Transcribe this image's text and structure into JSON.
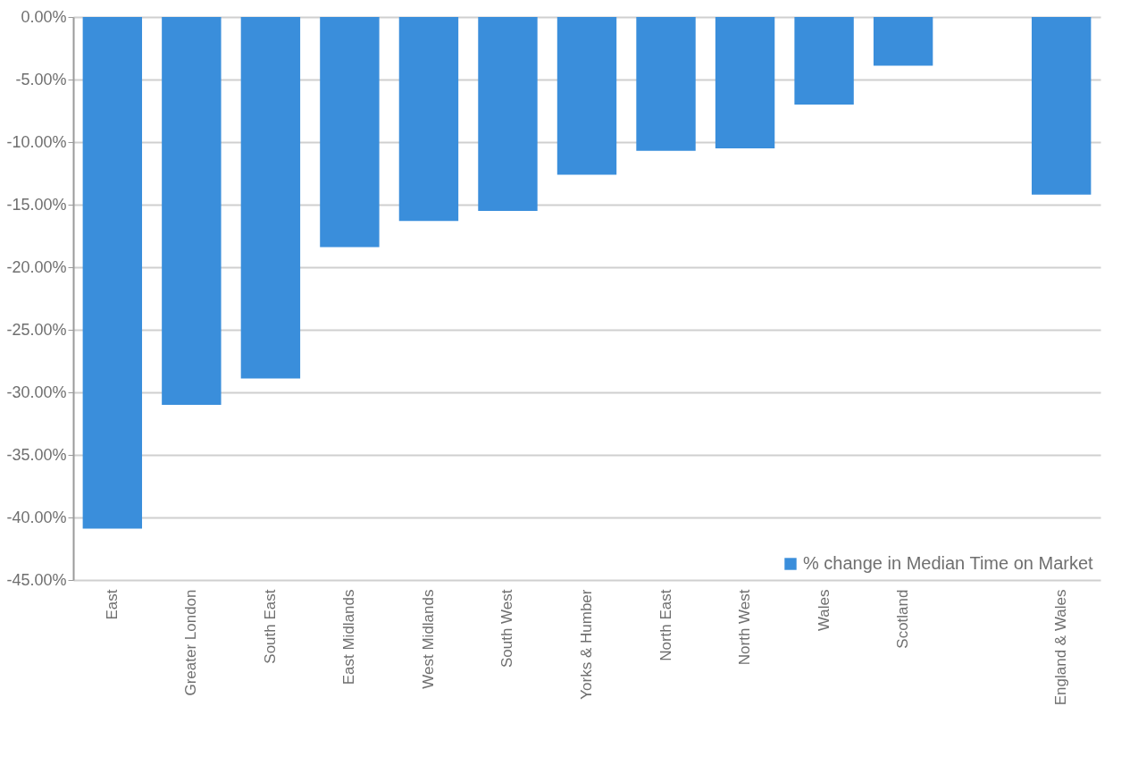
{
  "chart_data": {
    "type": "bar",
    "categories": [
      "East",
      "Greater London",
      "South East",
      "East Midlands",
      "West Midlands",
      "South West",
      "Yorks & Humber",
      "North East",
      "North West",
      "Wales",
      "Scotland",
      null,
      "England & Wales"
    ],
    "series": [
      {
        "name": "% change in Median Time on Market",
        "color": "#3a8edb",
        "values": [
          -40.9,
          -31.0,
          -28.9,
          -18.4,
          -16.3,
          -15.5,
          -12.6,
          -10.7,
          -10.5,
          -7.0,
          -3.9,
          null,
          -14.2
        ]
      }
    ],
    "ylim": [
      -45,
      0
    ],
    "yticks": [
      {
        "value": -45,
        "label": "-45.00%"
      },
      {
        "value": -40,
        "label": "-40.00%"
      },
      {
        "value": -35,
        "label": "-35.00%"
      },
      {
        "value": -30,
        "label": "-30.00%"
      },
      {
        "value": -25,
        "label": "-25.00%"
      },
      {
        "value": -20,
        "label": "-20.00%"
      },
      {
        "value": -15,
        "label": "-15.00%"
      },
      {
        "value": -10,
        "label": "-10.00%"
      },
      {
        "value": -5,
        "label": "-5.00%"
      },
      {
        "value": 0,
        "label": "0.00%"
      }
    ],
    "grid": "y",
    "legend": "bottom right"
  }
}
